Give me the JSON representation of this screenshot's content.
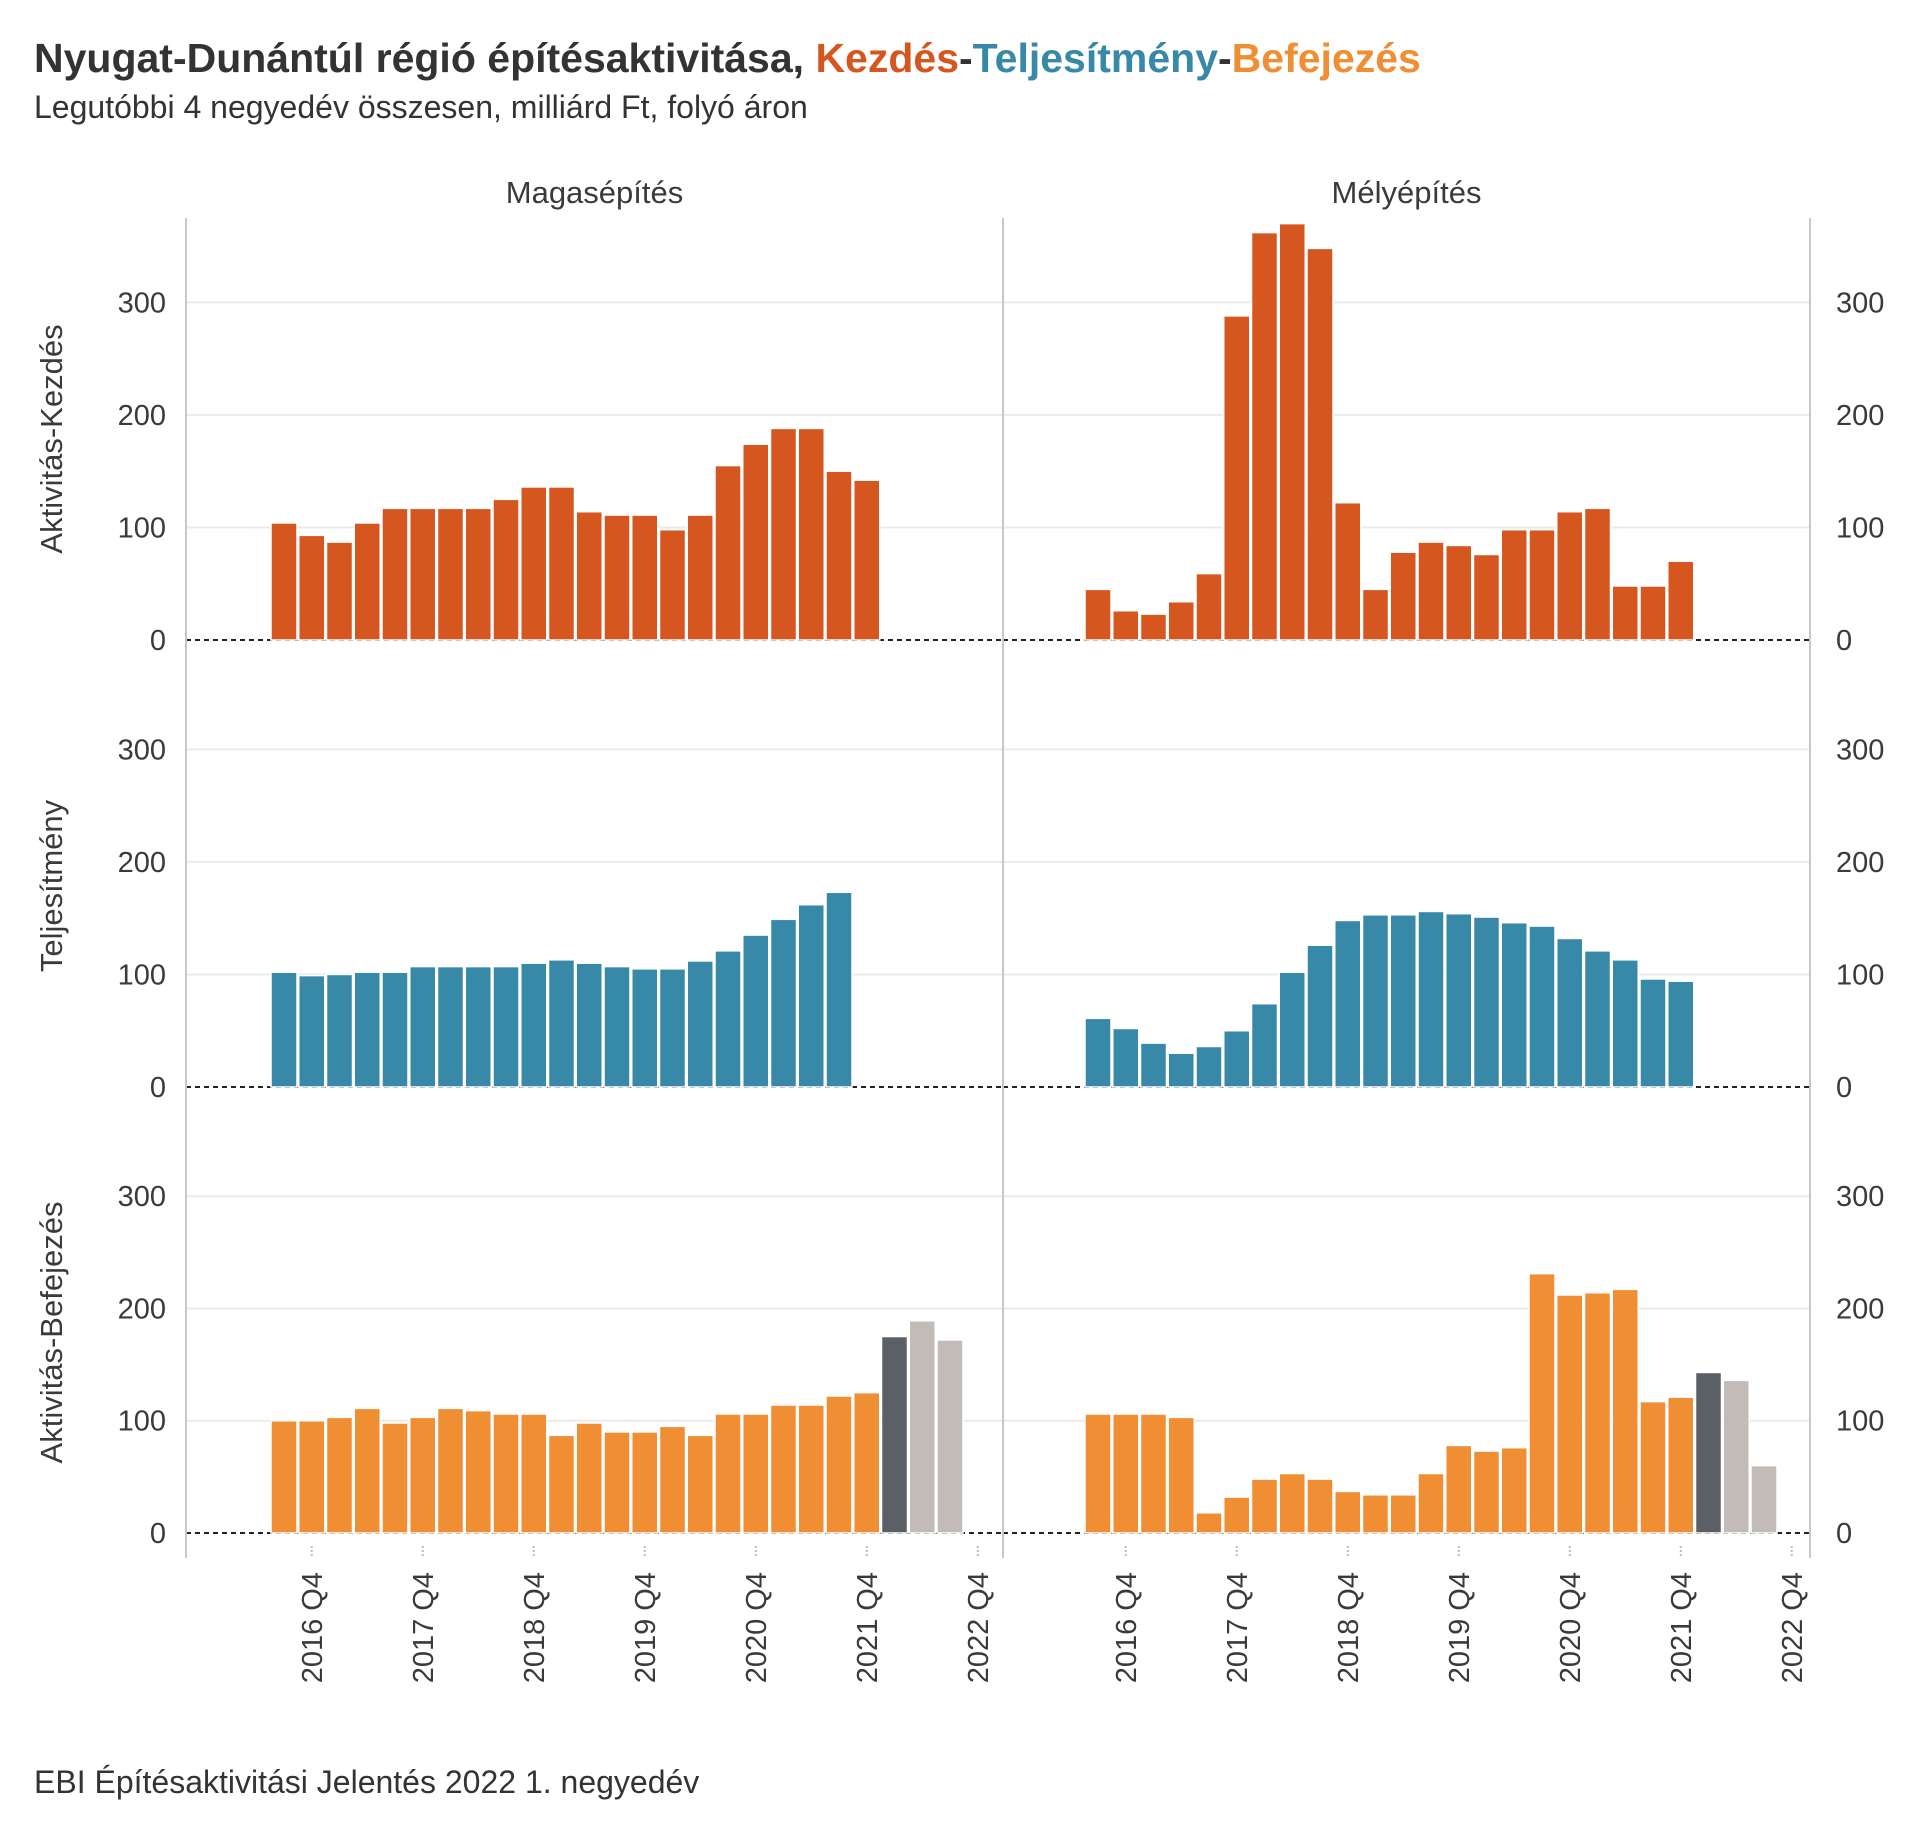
{
  "chart_data": {
    "type": "bar",
    "title": {
      "prefix": "Nyugat-Dunántúl régió építésaktivitása, ",
      "part1": "Kezdés",
      "sep1": "-",
      "part2": "Teljesítmény",
      "sep2": "-",
      "part3": "Befejezés"
    },
    "subtitle": "Legutóbbi 4 negyedév összesen, milliárd Ft, folyó áron",
    "caption": "EBI Építésaktivitási Jelentés 2022 1. negyedév",
    "columns": [
      "Magasépítés",
      "Mélyépítés"
    ],
    "rows": [
      "Aktivitás-Kezdés",
      "Teljesítmény",
      "Aktivitás-Befejezés"
    ],
    "colors": {
      "kezdes": "#d5561f",
      "teljesitmeny": "#3889a8",
      "befejezes": "#ef8e32",
      "current": "#5b5f66",
      "forecast": "#c3bbb7",
      "grid": "#ebebeb"
    },
    "ylim": [
      0,
      375
    ],
    "yticks": [
      0,
      100,
      200,
      300
    ],
    "xlim": [
      0,
      29
    ],
    "x_tick_labels": [
      "2016 Q4",
      "2017 Q4",
      "2018 Q4",
      "2019 Q4",
      "2020 Q4",
      "2021 Q4",
      "2022 Q4"
    ],
    "x_tick_positions": [
      4,
      8,
      12,
      16,
      20,
      24,
      28
    ],
    "quarters": [
      "2016 Q3",
      "2016 Q4",
      "2017 Q1",
      "2017 Q2",
      "2017 Q3",
      "2017 Q4",
      "2018 Q1",
      "2018 Q2",
      "2018 Q3",
      "2018 Q4",
      "2019 Q1",
      "2019 Q2",
      "2019 Q3",
      "2019 Q4",
      "2020 Q1",
      "2020 Q2",
      "2020 Q3",
      "2020 Q4",
      "2021 Q1",
      "2021 Q2",
      "2021 Q3",
      "2021 Q4",
      "2022 Q1",
      "2022 Q2",
      "2022 Q3",
      "2022 Q4"
    ],
    "series": [
      {
        "row": "Aktivitás-Kezdés",
        "column": "Magasépítés",
        "values": [
          104,
          93,
          87,
          104,
          117,
          117,
          117,
          117,
          125,
          136,
          136,
          114,
          111,
          111,
          98,
          111,
          155,
          174,
          188,
          188,
          150,
          142
        ]
      },
      {
        "row": "Aktivitás-Kezdés",
        "column": "Mélyépítés",
        "values": [
          45,
          26,
          23,
          34,
          59,
          288,
          362,
          370,
          348,
          122,
          45,
          78,
          87,
          84,
          76,
          98,
          98,
          114,
          117,
          48,
          48,
          70
        ]
      },
      {
        "row": "Teljesítmény",
        "column": "Magasépítés",
        "values": [
          102,
          99,
          100,
          102,
          102,
          107,
          107,
          107,
          107,
          110,
          113,
          110,
          107,
          105,
          105,
          112,
          121,
          135,
          149,
          162,
          173
        ]
      },
      {
        "row": "Teljesítmény",
        "column": "Mélyépítés",
        "values": [
          61,
          52,
          39,
          30,
          36,
          50,
          74,
          102,
          126,
          148,
          153,
          153,
          156,
          154,
          151,
          146,
          143,
          132,
          121,
          113,
          96,
          94
        ]
      },
      {
        "row": "Aktivitás-Befejezés",
        "column": "Magasépítés",
        "values": [
          100,
          100,
          103,
          111,
          98,
          103,
          111,
          109,
          106,
          106,
          87,
          98,
          90,
          90,
          95,
          87,
          106,
          106,
          114,
          114,
          122,
          125
        ],
        "current": 175,
        "forecast": [
          189,
          172
        ]
      },
      {
        "row": "Aktivitás-Befejezés",
        "column": "Mélyépítés",
        "values": [
          106,
          106,
          106,
          103,
          18,
          32,
          48,
          53,
          48,
          37,
          34,
          34,
          53,
          78,
          73,
          76,
          231,
          212,
          214,
          217,
          117,
          121
        ],
        "current": 143,
        "forecast": [
          136,
          60
        ]
      }
    ]
  }
}
